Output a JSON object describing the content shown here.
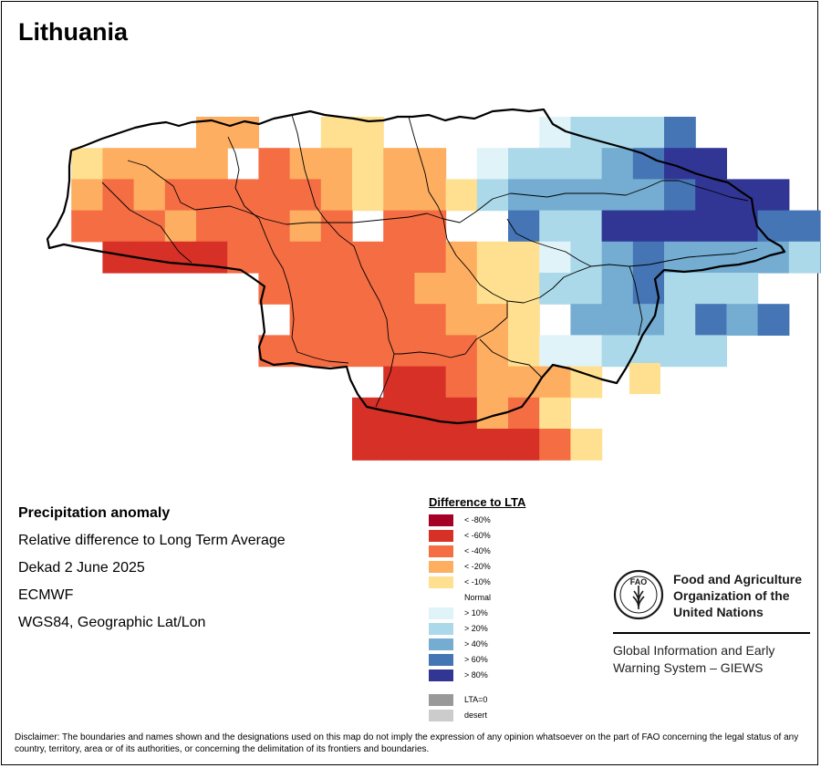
{
  "map": {
    "title": "Lithuania"
  },
  "info": {
    "title": "Precipitation anomaly",
    "lines": [
      "Relative difference to Long Term Average",
      "Dekad 2 June 2025",
      "ECMWF",
      "WGS84, Geographic Lat/Lon"
    ]
  },
  "legend": {
    "title": "Difference to LTA",
    "items": [
      {
        "label": "< -80%",
        "color": "#a50026"
      },
      {
        "label": "< -60%",
        "color": "#d73027"
      },
      {
        "label": "< -40%",
        "color": "#f46d43"
      },
      {
        "label": "< -20%",
        "color": "#fdae61"
      },
      {
        "label": "< -10%",
        "color": "#fee090"
      },
      {
        "label": "Normal",
        "color": "#ffffff"
      },
      {
        "label": "> 10%",
        "color": "#e0f3f8"
      },
      {
        "label": "> 20%",
        "color": "#abd9e9"
      },
      {
        "label": "> 40%",
        "color": "#74add1"
      },
      {
        "label": "> 60%",
        "color": "#4575b4"
      },
      {
        "label": "> 80%",
        "color": "#313695"
      }
    ],
    "extra": [
      {
        "label": "LTA=0",
        "color": "#999999"
      },
      {
        "label": "desert",
        "color": "#cccccc"
      }
    ]
  },
  "org": {
    "logo_text": "FAO",
    "name": "Food and Agriculture Organization of the United Nations",
    "system": "Global Information and Early Warning System – GIEWS"
  },
  "disclaimer": "Disclaimer: The boundaries and names shown and the designations used on this map do not imply the expression of any opinion whatsoever on the part of FAO concerning the legal status of any country, territory, area or of its authorities, or concerning the delimitation of its frontiers and boundaries."
}
